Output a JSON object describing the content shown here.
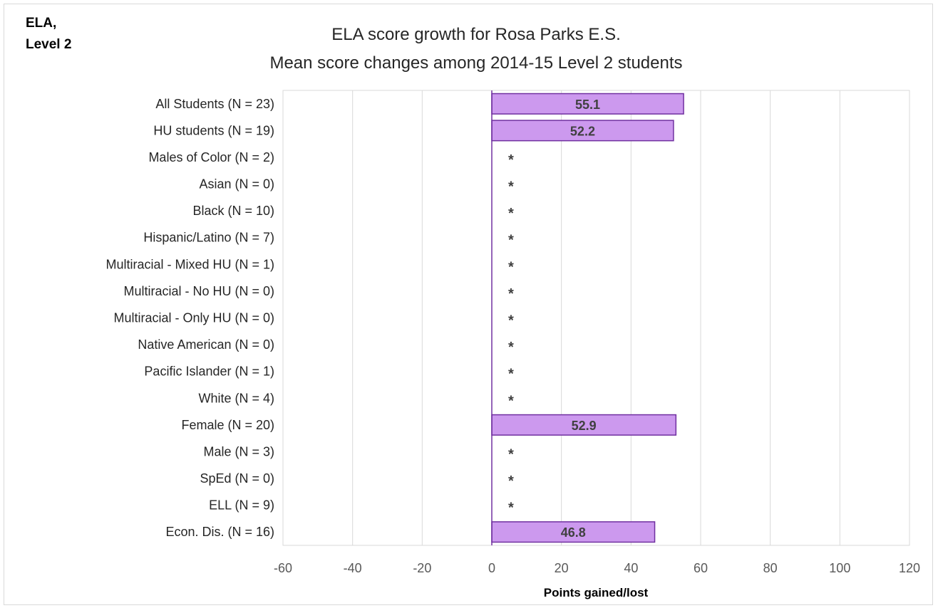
{
  "corner_label": {
    "line1": "ELA,",
    "line2": "Level 2"
  },
  "colors": {
    "bar_fill": "#cc99ee",
    "bar_stroke": "#7030a0",
    "grid": "#d9d9d9",
    "zero_line": "#7030a0"
  },
  "chart_data": {
    "type": "bar",
    "orientation": "horizontal",
    "title": "ELA score growth for Rosa Parks E.S.",
    "subtitle": "Mean score changes among 2014-15 Level 2 students",
    "xlabel": "Points gained/lost",
    "xlim": [
      -60,
      120
    ],
    "xticks": [
      -60,
      -40,
      -20,
      0,
      20,
      40,
      60,
      80,
      100,
      120
    ],
    "grid": true,
    "categories": [
      "All Students (N = 23)",
      "HU students (N = 19)",
      "Males of Color (N = 2)",
      "Asian (N = 0)",
      "Black (N = 10)",
      "Hispanic/Latino (N = 7)",
      "Multiracial - Mixed HU (N = 1)",
      "Multiracial - No HU (N = 0)",
      "Multiracial - Only HU (N = 0)",
      "Native American (N = 0)",
      "Pacific Islander (N = 1)",
      "White (N = 4)",
      "Female (N = 20)",
      "Male (N = 3)",
      "SpEd (N = 0)",
      "ELL (N = 9)",
      "Econ. Dis. (N = 16)"
    ],
    "values": [
      55.1,
      52.2,
      null,
      null,
      null,
      null,
      null,
      null,
      null,
      null,
      null,
      null,
      52.9,
      null,
      null,
      null,
      46.8
    ],
    "data_labels": [
      "55.1",
      "52.2",
      "*",
      "*",
      "*",
      "*",
      "*",
      "*",
      "*",
      "*",
      "*",
      "*",
      "52.9",
      "*",
      "*",
      "*",
      "46.8"
    ]
  }
}
